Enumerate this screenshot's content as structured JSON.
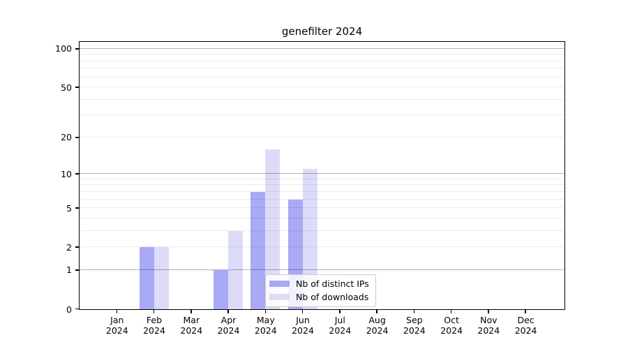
{
  "chart_data": {
    "type": "bar",
    "title": "genefilter 2024",
    "categories": [
      "Jan",
      "Feb",
      "Mar",
      "Apr",
      "May",
      "Jun",
      "Jul",
      "Aug",
      "Sep",
      "Oct",
      "Nov",
      "Dec"
    ],
    "category_year": "2024",
    "series": [
      {
        "name": "Nb of distinct IPs",
        "color": "#a9a9f5",
        "values": [
          0,
          2,
          0,
          1,
          7,
          6,
          0,
          0,
          0,
          0,
          0,
          0
        ]
      },
      {
        "name": "Nb of downloads",
        "color": "#dcdcf8",
        "values": [
          0,
          2,
          0,
          3,
          16,
          11,
          0,
          0,
          0,
          0,
          0,
          0
        ]
      }
    ],
    "xlabel": "",
    "ylabel": "",
    "yscale": "log10(1+x)",
    "ylim": [
      0,
      100
    ],
    "yticks": [
      0,
      1,
      2,
      5,
      10,
      20,
      50,
      100
    ],
    "major_gridlines": [
      1,
      10,
      100
    ],
    "minor_gridlines": [
      2,
      3,
      4,
      5,
      6,
      7,
      8,
      9,
      20,
      30,
      40,
      50,
      60,
      70,
      80,
      90
    ],
    "grid": "horizontal",
    "legend_position": "inside-bottom-center"
  }
}
